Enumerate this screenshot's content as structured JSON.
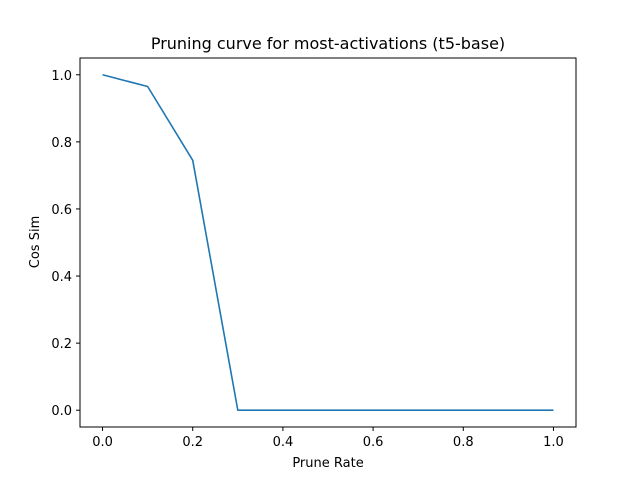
{
  "chart_data": {
    "type": "line",
    "title": "Pruning curve for most-activations (t5-base)",
    "xlabel": "Prune Rate",
    "ylabel": "Cos Sim",
    "xlim": [
      -0.05,
      1.05
    ],
    "ylim": [
      -0.05,
      1.05
    ],
    "xticks": [
      0.0,
      0.2,
      0.4,
      0.6,
      0.8,
      1.0
    ],
    "xtick_labels": [
      "0.0",
      "0.2",
      "0.4",
      "0.6",
      "0.8",
      "1.0"
    ],
    "yticks": [
      0.0,
      0.2,
      0.4,
      0.6,
      0.8,
      1.0
    ],
    "ytick_labels": [
      "0.0",
      "0.2",
      "0.4",
      "0.6",
      "0.8",
      "1.0"
    ],
    "grid": false,
    "series": [
      {
        "color": "#1f77b4",
        "x": [
          0.0,
          0.1,
          0.2,
          0.3,
          0.4,
          0.5,
          0.6,
          0.7,
          0.8,
          0.9,
          1.0
        ],
        "y": [
          1.0,
          0.965,
          0.745,
          0.0,
          0.0,
          0.0,
          0.0,
          0.0,
          0.0,
          0.0,
          0.0
        ]
      }
    ]
  }
}
